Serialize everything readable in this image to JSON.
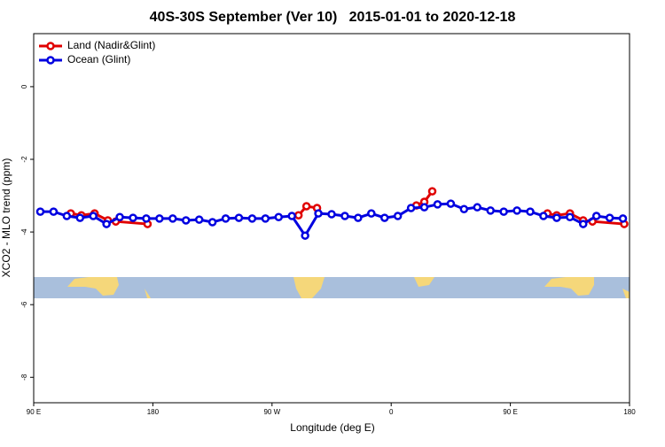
{
  "chart_data": {
    "type": "line",
    "title": "40S-30S September (Ver 10)   2015-01-01 to 2020-12-18",
    "x_label": "Longitude (deg E)",
    "y_label": "XCO2 - MLO trend (ppm)",
    "xlim": [
      90,
      540
    ],
    "xticks": [
      {
        "value": 90,
        "label": "90 E"
      },
      180,
      {
        "value": 270,
        "label": "90 W"
      },
      {
        "value": 360,
        "label": "0"
      },
      {
        "value": 450,
        "label": "90 E"
      },
      {
        "value": 540,
        "label": "180"
      }
    ],
    "ylim": [
      -8.7,
      1.46
    ],
    "yticks": [
      0,
      -2,
      -4,
      -6,
      -8
    ],
    "legend": "top-left",
    "series": [
      {
        "name": "Land (Nadir&Glint)",
        "color": "#e00000",
        "x": [
          118,
          126,
          136,
          146,
          152,
          176,
          null,
          290,
          296,
          304,
          null,
          379,
          385,
          391,
          null,
          478,
          485,
          495,
          505,
          512,
          536
        ],
        "values": [
          -3.49,
          -3.54,
          -3.49,
          -3.68,
          -3.71,
          -3.78,
          null,
          -3.54,
          -3.29,
          -3.34,
          null,
          -3.27,
          -3.17,
          -2.88,
          null,
          -3.49,
          -3.54,
          -3.49,
          -3.68,
          -3.71,
          -3.78
        ]
      },
      {
        "name": "Ocean (Glint)",
        "color": "#0000e0",
        "x": [
          95,
          105,
          115,
          125,
          135,
          145,
          155,
          165,
          175,
          185,
          195,
          205,
          215,
          225,
          235,
          245,
          255,
          265,
          275,
          285,
          295,
          305,
          315,
          325,
          335,
          345,
          355,
          365,
          375,
          385,
          395,
          405,
          415,
          425,
          435,
          445,
          455,
          465,
          475,
          485,
          495,
          505,
          515,
          525,
          535
        ],
        "values": [
          -3.44,
          -3.44,
          -3.56,
          -3.61,
          -3.56,
          -3.78,
          -3.59,
          -3.61,
          -3.63,
          -3.63,
          -3.63,
          -3.68,
          -3.66,
          -3.73,
          -3.63,
          -3.61,
          -3.63,
          -3.63,
          -3.59,
          -3.56,
          -4.1,
          -3.49,
          -3.51,
          -3.56,
          -3.61,
          -3.49,
          -3.61,
          -3.56,
          -3.34,
          -3.32,
          -3.24,
          -3.22,
          -3.37,
          -3.32,
          -3.41,
          -3.44,
          -3.41,
          -3.44,
          -3.56,
          -3.61,
          -3.59,
          -3.78,
          -3.56,
          -3.61,
          -3.63
        ]
      }
    ]
  }
}
